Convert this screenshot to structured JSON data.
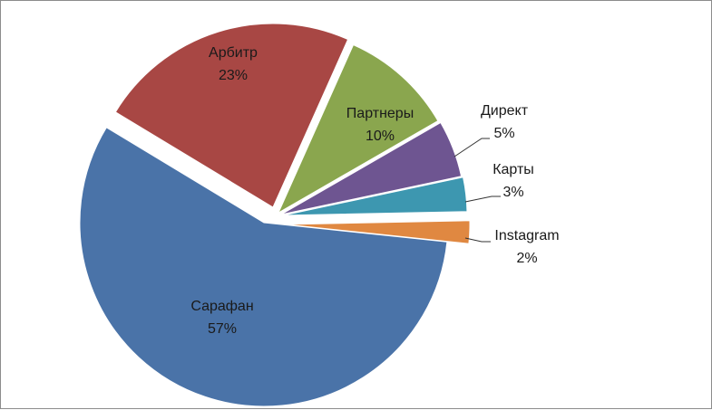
{
  "chart_data": {
    "type": "pie",
    "title": "",
    "exploded": true,
    "slices": [
      {
        "label": "Сарафан",
        "value": 57,
        "display": "57%",
        "color": "#4a73a8"
      },
      {
        "label": "Арбитр",
        "value": 23,
        "display": "23%",
        "color": "#a84744"
      },
      {
        "label": "Партнеры",
        "value": 10,
        "display": "10%",
        "color": "#8aa64e"
      },
      {
        "label": "Директ",
        "value": 5,
        "display": "5%",
        "color": "#6e5591"
      },
      {
        "label": "Карты",
        "value": 3,
        "display": "3%",
        "color": "#3d97b0"
      },
      {
        "label": "Instagram",
        "value": 2,
        "display": "2%",
        "color": "#e08841"
      }
    ],
    "data_labels": "category name and percentage",
    "legend": "none"
  }
}
